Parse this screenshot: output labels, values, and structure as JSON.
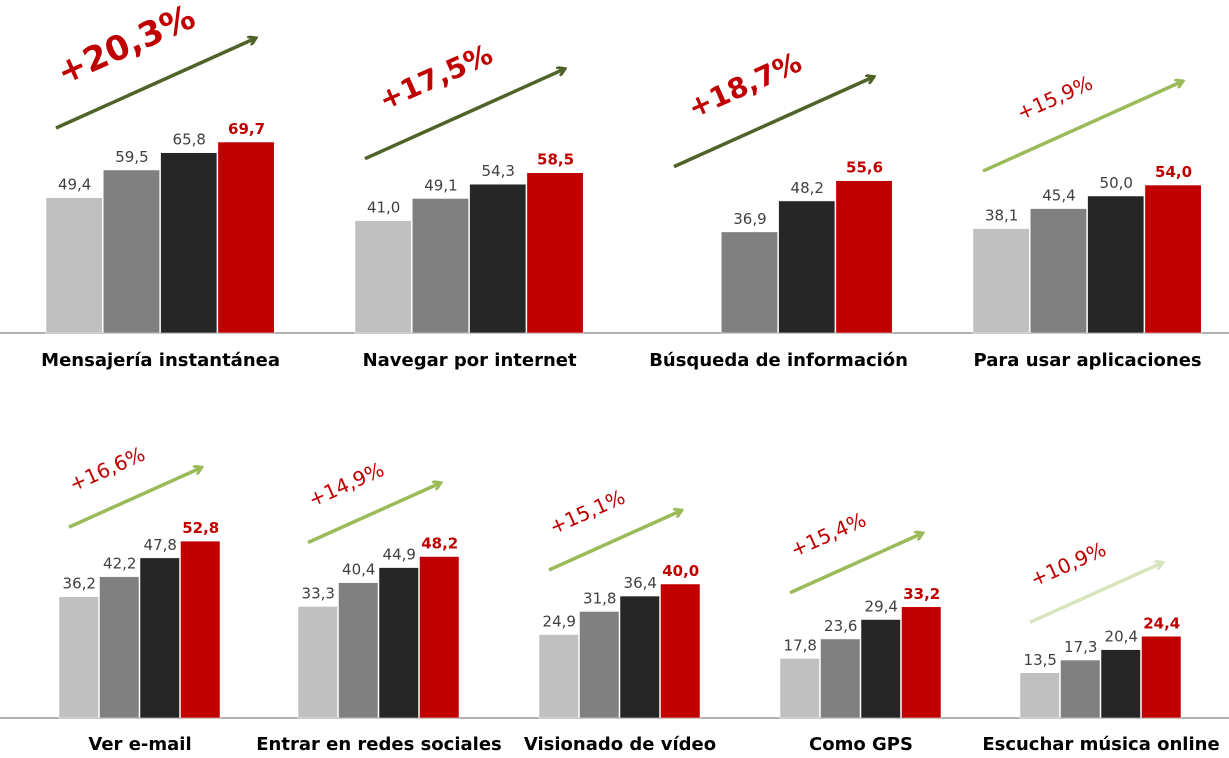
{
  "chart_data": [
    {
      "type": "bar",
      "categories": [
        "Mensajería instantánea",
        "Navegar por internet",
        "Búsqueda de información",
        "Para usar aplicaciones"
      ],
      "series": [
        {
          "color": "#c0c0c0",
          "values": [
            49.4,
            41.0,
            null,
            38.1
          ],
          "value_labels": [
            "49,4",
            "41,0",
            null,
            "38,1"
          ]
        },
        {
          "color": "#808080",
          "values": [
            59.5,
            49.1,
            36.9,
            45.4
          ],
          "value_labels": [
            "59,5",
            "49,1",
            "36,9",
            "45,4"
          ]
        },
        {
          "color": "#262626",
          "values": [
            65.8,
            54.3,
            48.2,
            50.0
          ],
          "value_labels": [
            "65,8",
            "54,3",
            "48,2",
            "50,0"
          ]
        },
        {
          "color": "#c00000",
          "values": [
            69.7,
            58.5,
            55.6,
            54.0
          ],
          "value_labels": [
            "69,7",
            "58,5",
            "55,6",
            "54,0"
          ]
        }
      ],
      "annotations": [
        "+20,3%",
        "+17,5%",
        "+18,7%",
        "+15,9%"
      ],
      "arrow_colors": [
        "#4f6228",
        "#4f6228",
        "#4f6228",
        "#9bbb59"
      ],
      "ylim": [
        0,
        70
      ]
    },
    {
      "type": "bar",
      "categories": [
        "Ver e-mail",
        "Entrar en redes sociales",
        "Visionado de vídeo",
        "Como GPS",
        "Escuchar música online"
      ],
      "series": [
        {
          "color": "#c0c0c0",
          "values": [
            36.2,
            33.3,
            24.9,
            17.8,
            13.5
          ],
          "value_labels": [
            "36,2",
            "33,3",
            "24,9",
            "17,8",
            "13,5"
          ]
        },
        {
          "color": "#808080",
          "values": [
            42.2,
            40.4,
            31.8,
            23.6,
            17.3
          ],
          "value_labels": [
            "42,2",
            "40,4",
            "31,8",
            "23,6",
            "17,3"
          ]
        },
        {
          "color": "#262626",
          "values": [
            47.8,
            44.9,
            36.4,
            29.4,
            20.4
          ],
          "value_labels": [
            "47,8",
            "44,9",
            "36,4",
            "29,4",
            "20,4"
          ]
        },
        {
          "color": "#c00000",
          "values": [
            52.8,
            48.2,
            40.0,
            33.2,
            24.4
          ],
          "value_labels": [
            "52,8",
            "48,2",
            "40,0",
            "33,2",
            "24,4"
          ]
        }
      ],
      "annotations": [
        "+16,6%",
        "+14,9%",
        "+15,1%",
        "+15,4%",
        "+10,9%"
      ],
      "arrow_colors": [
        "#9bbb59",
        "#9bbb59",
        "#9bbb59",
        "#9bbb59",
        "#d7e4bd"
      ],
      "ylim": [
        0,
        55
      ]
    }
  ]
}
